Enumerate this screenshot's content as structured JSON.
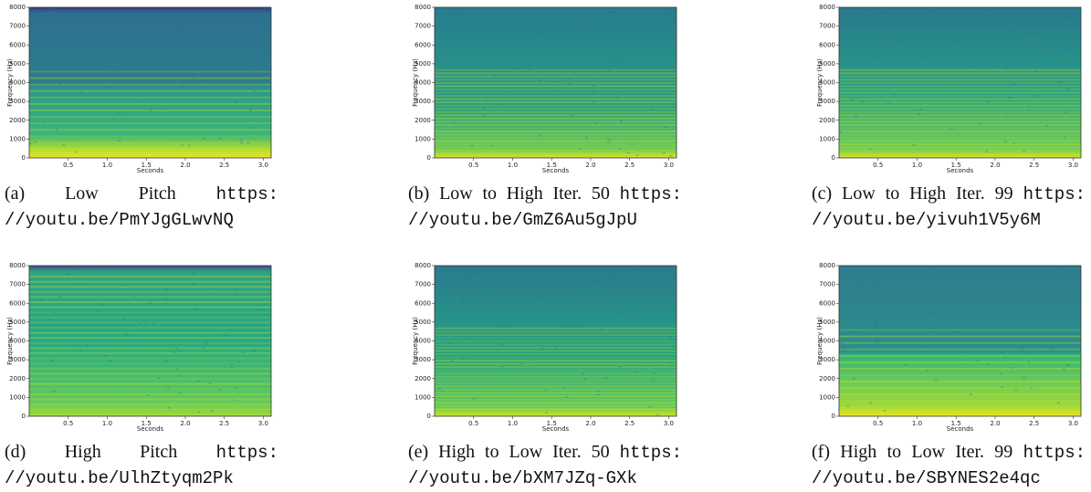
{
  "axes": {
    "ylabel": "Frequency (Hz)",
    "xlabel": "Seconds",
    "xlim": [
      0,
      3.1
    ],
    "ylim": [
      0,
      8000
    ],
    "yticks": [
      0,
      1000,
      2000,
      3000,
      4000,
      5000,
      6000,
      7000,
      8000
    ],
    "xticks": [
      {
        "value": 0.5,
        "label": "0.5"
      },
      {
        "value": 1.0,
        "label": "1.0"
      },
      {
        "value": 1.5,
        "label": "1.5"
      },
      {
        "value": 2.0,
        "label": "2.0"
      },
      {
        "value": 2.5,
        "label": "2.5"
      },
      {
        "value": 3.0,
        "label": "3.0"
      }
    ]
  },
  "panels": [
    {
      "label": "(a)",
      "caption": "Low Pitch",
      "url_scheme": "https:",
      "url_path": "//youtu.be/PmYJgGLwvNQ"
    },
    {
      "label": "(b)",
      "caption": "Low to High Iter. 50",
      "url_scheme": "https:",
      "url_path": "//youtu.be/GmZ6Au5gJpU"
    },
    {
      "label": "(c)",
      "caption": "Low to High Iter. 99",
      "url_scheme": "https:",
      "url_path": "//youtu.be/yivuh1V5y6M"
    },
    {
      "label": "(d)",
      "caption": "High Pitch",
      "url_scheme": "https:",
      "url_path": "//youtu.be/UlhZtyqm2Pk"
    },
    {
      "label": "(e)",
      "caption": "High to Low Iter. 50",
      "url_scheme": "https:",
      "url_path": "//youtu.be/bXM7JZq-GXk"
    },
    {
      "label": "(f)",
      "caption": "High to Low Iter. 99",
      "url_scheme": "https:",
      "url_path": "//youtu.be/SBYNES2e4qc"
    }
  ]
}
